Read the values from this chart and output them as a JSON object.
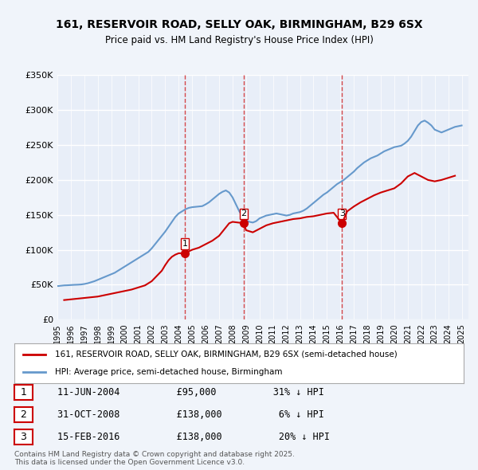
{
  "title1": "161, RESERVOIR ROAD, SELLY OAK, BIRMINGHAM, B29 6SX",
  "title2": "Price paid vs. HM Land Registry's House Price Index (HPI)",
  "ylabel": "",
  "background_color": "#f0f4fa",
  "plot_bg_color": "#e8eef8",
  "line_color_red": "#cc0000",
  "line_color_blue": "#6699cc",
  "grid_color": "#ffffff",
  "ylim": [
    0,
    350000
  ],
  "yticks": [
    0,
    50000,
    100000,
    150000,
    200000,
    250000,
    300000,
    350000
  ],
  "ytick_labels": [
    "£0",
    "£50K",
    "£100K",
    "£150K",
    "£200K",
    "£250K",
    "£300K",
    "£350K"
  ],
  "hpi_years": [
    1995,
    1995.25,
    1995.5,
    1995.75,
    1996,
    1996.25,
    1996.5,
    1996.75,
    1997,
    1997.25,
    1997.5,
    1997.75,
    1998,
    1998.25,
    1998.5,
    1998.75,
    1999,
    1999.25,
    1999.5,
    1999.75,
    2000,
    2000.25,
    2000.5,
    2000.75,
    2001,
    2001.25,
    2001.5,
    2001.75,
    2002,
    2002.25,
    2002.5,
    2002.75,
    2003,
    2003.25,
    2003.5,
    2003.75,
    2004,
    2004.25,
    2004.5,
    2004.75,
    2005,
    2005.25,
    2005.5,
    2005.75,
    2006,
    2006.25,
    2006.5,
    2006.75,
    2007,
    2007.25,
    2007.5,
    2007.75,
    2008,
    2008.25,
    2008.5,
    2008.75,
    2009,
    2009.25,
    2009.5,
    2009.75,
    2010,
    2010.25,
    2010.5,
    2010.75,
    2011,
    2011.25,
    2011.5,
    2011.75,
    2012,
    2012.25,
    2012.5,
    2012.75,
    2013,
    2013.25,
    2013.5,
    2013.75,
    2014,
    2014.25,
    2014.5,
    2014.75,
    2015,
    2015.25,
    2015.5,
    2015.75,
    2016,
    2016.25,
    2016.5,
    2016.75,
    2017,
    2017.25,
    2017.5,
    2017.75,
    2018,
    2018.25,
    2018.5,
    2018.75,
    2019,
    2019.25,
    2019.5,
    2019.75,
    2020,
    2020.25,
    2020.5,
    2020.75,
    2021,
    2021.25,
    2021.5,
    2021.75,
    2022,
    2022.25,
    2022.5,
    2022.75,
    2023,
    2023.25,
    2023.5,
    2023.75,
    2024,
    2024.25,
    2024.5,
    2024.75,
    2025
  ],
  "hpi_values": [
    48000,
    48500,
    49000,
    49200,
    49500,
    49800,
    50000,
    50300,
    51000,
    52000,
    53500,
    55000,
    57000,
    59000,
    61000,
    63000,
    65000,
    67000,
    70000,
    73000,
    76000,
    79000,
    82000,
    85000,
    88000,
    91000,
    94000,
    97000,
    102000,
    108000,
    114000,
    120000,
    126000,
    133000,
    140000,
    147000,
    152000,
    155000,
    158000,
    160000,
    161000,
    161500,
    162000,
    162500,
    165000,
    168000,
    172000,
    176000,
    180000,
    183000,
    185000,
    182000,
    175000,
    165000,
    155000,
    148000,
    142000,
    140000,
    139000,
    141000,
    145000,
    147000,
    149000,
    150000,
    151000,
    152000,
    151000,
    150000,
    149000,
    150000,
    152000,
    153000,
    154000,
    156000,
    159000,
    163000,
    167000,
    171000,
    175000,
    179000,
    182000,
    186000,
    190000,
    194000,
    197000,
    200000,
    204000,
    208000,
    212000,
    217000,
    221000,
    225000,
    228000,
    231000,
    233000,
    235000,
    238000,
    241000,
    243000,
    245000,
    247000,
    248000,
    249000,
    252000,
    256000,
    262000,
    270000,
    278000,
    283000,
    285000,
    282000,
    278000,
    272000,
    270000,
    268000,
    270000,
    272000,
    274000,
    276000,
    277000,
    278000
  ],
  "price_years": [
    1995.5,
    1996,
    1996.5,
    1997,
    1997.5,
    1998,
    1998.5,
    1999,
    1999.5,
    2000,
    2000.5,
    2001,
    2001.5,
    2002,
    2002.25,
    2002.5,
    2002.75,
    2003,
    2003.25,
    2003.5,
    2003.75,
    2004,
    2004.45,
    2005,
    2005.5,
    2006,
    2006.5,
    2007,
    2007.5,
    2007.75,
    2008,
    2008.83,
    2009,
    2009.5,
    2010,
    2010.5,
    2011,
    2011.5,
    2012,
    2012.5,
    2013,
    2013.5,
    2014,
    2014.5,
    2015,
    2015.5,
    2016.12,
    2016.5,
    2017,
    2017.5,
    2018,
    2018.5,
    2019,
    2019.5,
    2020,
    2020.5,
    2021,
    2021.5,
    2022,
    2022.5,
    2023,
    2023.5,
    2024,
    2024.5
  ],
  "price_values": [
    28000,
    29000,
    30000,
    31000,
    32000,
    33000,
    35000,
    37000,
    39000,
    41000,
    43000,
    46000,
    49000,
    55000,
    60000,
    65000,
    70000,
    78000,
    85000,
    90000,
    93000,
    95000,
    95000,
    100000,
    103000,
    108000,
    113000,
    120000,
    132000,
    138000,
    140000,
    138000,
    128000,
    125000,
    130000,
    135000,
    138000,
    140000,
    142000,
    144000,
    145000,
    147000,
    148000,
    150000,
    152000,
    153000,
    138000,
    155000,
    162000,
    168000,
    173000,
    178000,
    182000,
    185000,
    188000,
    195000,
    205000,
    210000,
    205000,
    200000,
    198000,
    200000,
    203000,
    206000
  ],
  "transactions": [
    {
      "num": 1,
      "year": 2004.45,
      "price": 95000,
      "date": "11-JUN-2004",
      "pct": "31%",
      "dir": "↓"
    },
    {
      "num": 2,
      "year": 2008.83,
      "price": 138000,
      "date": "31-OCT-2008",
      "pct": "6%",
      "dir": "↓"
    },
    {
      "num": 3,
      "year": 2016.12,
      "price": 138000,
      "date": "15-FEB-2016",
      "pct": "20%",
      "dir": "↓"
    }
  ],
  "legend_red": "161, RESERVOIR ROAD, SELLY OAK, BIRMINGHAM, B29 6SX (semi-detached house)",
  "legend_blue": "HPI: Average price, semi-detached house, Birmingham",
  "copyright": "Contains HM Land Registry data © Crown copyright and database right 2025.\nThis data is licensed under the Open Government Licence v3.0."
}
